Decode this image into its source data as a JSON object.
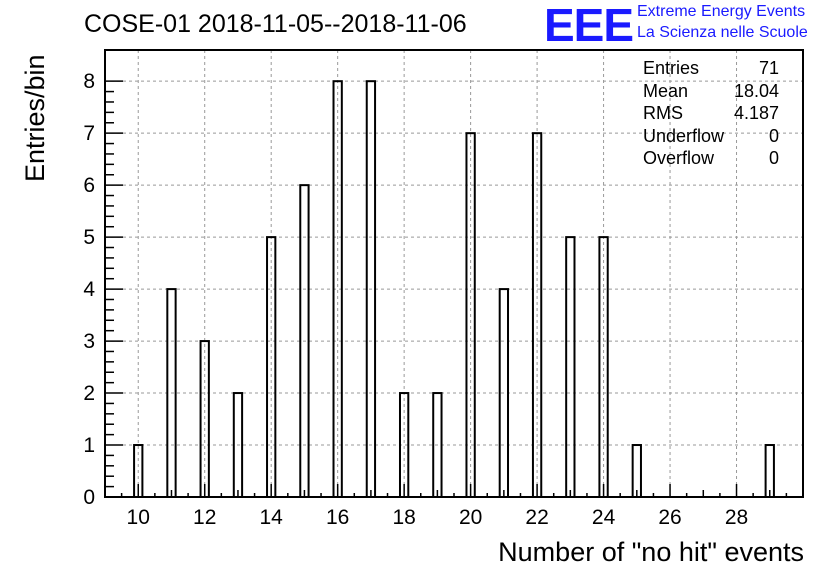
{
  "title": "COSE-01 2018-11-05--2018-11-06",
  "logo": {
    "text": "EEE",
    "line1": "Extreme Energy Events",
    "line2": "La Scienza nelle Scuole",
    "color": "#1a1aff"
  },
  "stats": [
    {
      "label": "Entries",
      "value": "71"
    },
    {
      "label": "Mean",
      "value": "18.04"
    },
    {
      "label": "RMS",
      "value": "4.187"
    },
    {
      "label": "Underflow",
      "value": "0"
    },
    {
      "label": "Overflow",
      "value": "0"
    }
  ],
  "chart_data": {
    "type": "bar",
    "xlabel": "Number of \"no hit\" events",
    "ylabel": "Entries/bin",
    "xlim": [
      9,
      30
    ],
    "ylim": [
      0,
      8.6
    ],
    "grid": true,
    "x": [
      10,
      11,
      12,
      13,
      14,
      15,
      16,
      17,
      18,
      19,
      20,
      21,
      22,
      23,
      24,
      25,
      29
    ],
    "values": [
      1,
      4,
      3,
      2,
      5,
      6,
      8,
      8,
      2,
      2,
      7,
      4,
      7,
      5,
      5,
      1,
      1
    ],
    "xticks": [
      10,
      12,
      14,
      16,
      18,
      20,
      22,
      24,
      26,
      28
    ],
    "yticks": [
      0,
      1,
      2,
      3,
      4,
      5,
      6,
      7,
      8
    ]
  }
}
